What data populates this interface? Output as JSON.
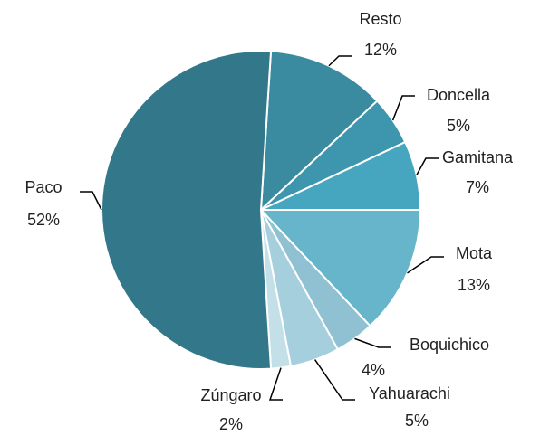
{
  "chart_data": {
    "type": "pie",
    "categories": [
      "Resto",
      "Doncella",
      "Gamitana",
      "Mota",
      "Boquichico",
      "Yahuarachi",
      "Zúngaro",
      "Paco"
    ],
    "values": [
      12,
      5,
      7,
      13,
      4,
      5,
      2,
      52
    ],
    "value_labels": [
      "12%",
      "5%",
      "7%",
      "13%",
      "4%",
      "5%",
      "2%",
      "52%"
    ],
    "colors": [
      "#3a8aa0",
      "#3d96ad",
      "#46a6bf",
      "#67b5cb",
      "#8fc1d2",
      "#a6cfdd",
      "#c3e0e8",
      "#33788a"
    ]
  }
}
